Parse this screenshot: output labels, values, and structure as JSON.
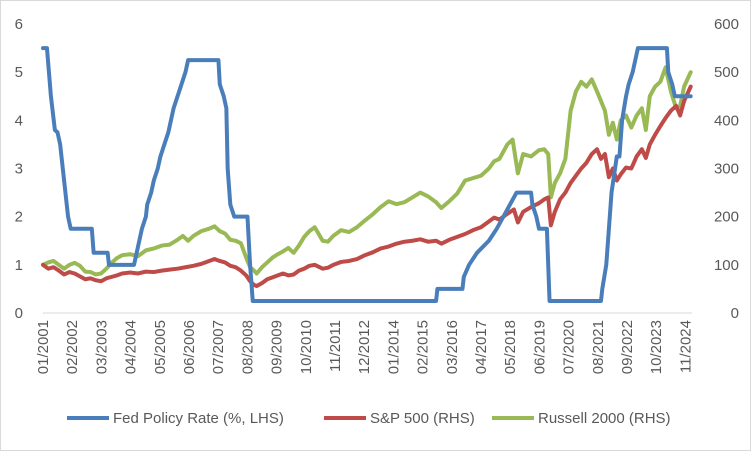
{
  "chart_data": {
    "type": "line",
    "title": "",
    "xlabel": "",
    "ylabel_left": "",
    "ylabel_right": "",
    "grid": false,
    "legend_position": "bottom",
    "y_left": {
      "min": 0,
      "max": 6,
      "ticks": [
        "0",
        "1",
        "2",
        "3",
        "4",
        "5",
        "6"
      ]
    },
    "y_right": {
      "min": 0,
      "max": 600,
      "ticks": [
        "0",
        "100",
        "200",
        "300",
        "400",
        "500",
        "600"
      ]
    },
    "x_range": [
      2001.0,
      2025.6
    ],
    "x_tick_labels": [
      "01/2001",
      "02/2002",
      "03/2003",
      "04/2004",
      "05/2005",
      "06/2006",
      "07/2007",
      "08/2008",
      "09/2009",
      "10/2010",
      "11/2011",
      "12/2012",
      "01/2014",
      "02/2015",
      "03/2016",
      "04/2017",
      "05/2018",
      "06/2019",
      "07/2020",
      "08/2021",
      "09/2022",
      "10/2023",
      "11/2024"
    ],
    "series": [
      {
        "name": "Fed Policy Rate (%, LHS)",
        "axis": "left",
        "color": "#4a7ebb",
        "points": [
          [
            2001.0,
            5.5
          ],
          [
            2001.15,
            5.5
          ],
          [
            2001.3,
            4.5
          ],
          [
            2001.45,
            3.8
          ],
          [
            2001.55,
            3.75
          ],
          [
            2001.65,
            3.5
          ],
          [
            2001.75,
            3.0
          ],
          [
            2001.85,
            2.5
          ],
          [
            2001.95,
            2.0
          ],
          [
            2002.05,
            1.75
          ],
          [
            2002.85,
            1.75
          ],
          [
            2002.92,
            1.25
          ],
          [
            2003.45,
            1.25
          ],
          [
            2003.5,
            1.0
          ],
          [
            2004.45,
            1.0
          ],
          [
            2004.55,
            1.25
          ],
          [
            2004.65,
            1.5
          ],
          [
            2004.75,
            1.75
          ],
          [
            2004.9,
            2.0
          ],
          [
            2004.95,
            2.25
          ],
          [
            2005.1,
            2.5
          ],
          [
            2005.2,
            2.75
          ],
          [
            2005.35,
            3.0
          ],
          [
            2005.45,
            3.25
          ],
          [
            2005.6,
            3.5
          ],
          [
            2005.75,
            3.75
          ],
          [
            2005.85,
            4.0
          ],
          [
            2005.95,
            4.25
          ],
          [
            2006.1,
            4.5
          ],
          [
            2006.25,
            4.75
          ],
          [
            2006.4,
            5.0
          ],
          [
            2006.5,
            5.25
          ],
          [
            2007.65,
            5.25
          ],
          [
            2007.7,
            4.75
          ],
          [
            2007.85,
            4.5
          ],
          [
            2007.95,
            4.25
          ],
          [
            2008.0,
            3.0
          ],
          [
            2008.1,
            2.25
          ],
          [
            2008.25,
            2.0
          ],
          [
            2008.75,
            2.0
          ],
          [
            2008.85,
            1.0
          ],
          [
            2008.95,
            0.25
          ],
          [
            2015.9,
            0.25
          ],
          [
            2015.95,
            0.5
          ],
          [
            2016.9,
            0.5
          ],
          [
            2016.95,
            0.75
          ],
          [
            2017.15,
            1.0
          ],
          [
            2017.45,
            1.25
          ],
          [
            2017.9,
            1.5
          ],
          [
            2018.2,
            1.75
          ],
          [
            2018.45,
            2.0
          ],
          [
            2018.7,
            2.25
          ],
          [
            2018.95,
            2.5
          ],
          [
            2019.5,
            2.5
          ],
          [
            2019.55,
            2.25
          ],
          [
            2019.7,
            2.0
          ],
          [
            2019.8,
            1.75
          ],
          [
            2020.1,
            1.75
          ],
          [
            2020.2,
            0.25
          ],
          [
            2022.15,
            0.25
          ],
          [
            2022.2,
            0.5
          ],
          [
            2022.35,
            1.0
          ],
          [
            2022.45,
            1.75
          ],
          [
            2022.55,
            2.5
          ],
          [
            2022.75,
            3.25
          ],
          [
            2022.85,
            3.25
          ],
          [
            2022.95,
            4.0
          ],
          [
            2023.1,
            4.5
          ],
          [
            2023.2,
            4.75
          ],
          [
            2023.35,
            5.0
          ],
          [
            2023.45,
            5.25
          ],
          [
            2023.55,
            5.5
          ],
          [
            2024.65,
            5.5
          ],
          [
            2024.7,
            5.0
          ],
          [
            2024.85,
            4.75
          ],
          [
            2024.95,
            4.5
          ],
          [
            2025.55,
            4.5
          ]
        ]
      },
      {
        "name": "S&P 500 (RHS)",
        "axis": "right",
        "color": "#be4b48",
        "points": [
          [
            2001.0,
            100
          ],
          [
            2001.2,
            92
          ],
          [
            2001.4,
            95
          ],
          [
            2001.6,
            88
          ],
          [
            2001.8,
            80
          ],
          [
            2002.0,
            85
          ],
          [
            2002.2,
            82
          ],
          [
            2002.4,
            76
          ],
          [
            2002.6,
            70
          ],
          [
            2002.8,
            72
          ],
          [
            2003.0,
            68
          ],
          [
            2003.2,
            66
          ],
          [
            2003.4,
            72
          ],
          [
            2003.6,
            75
          ],
          [
            2003.8,
            78
          ],
          [
            2004.0,
            82
          ],
          [
            2004.3,
            84
          ],
          [
            2004.6,
            82
          ],
          [
            2004.9,
            86
          ],
          [
            2005.2,
            85
          ],
          [
            2005.5,
            88
          ],
          [
            2005.8,
            90
          ],
          [
            2006.1,
            92
          ],
          [
            2006.4,
            95
          ],
          [
            2006.7,
            98
          ],
          [
            2007.0,
            102
          ],
          [
            2007.3,
            108
          ],
          [
            2007.5,
            112
          ],
          [
            2007.7,
            108
          ],
          [
            2007.9,
            105
          ],
          [
            2008.1,
            98
          ],
          [
            2008.3,
            95
          ],
          [
            2008.5,
            88
          ],
          [
            2008.7,
            78
          ],
          [
            2008.85,
            66
          ],
          [
            2009.0,
            58
          ],
          [
            2009.1,
            56
          ],
          [
            2009.3,
            62
          ],
          [
            2009.5,
            70
          ],
          [
            2009.7,
            74
          ],
          [
            2009.9,
            78
          ],
          [
            2010.1,
            82
          ],
          [
            2010.3,
            78
          ],
          [
            2010.5,
            80
          ],
          [
            2010.7,
            88
          ],
          [
            2010.9,
            92
          ],
          [
            2011.1,
            98
          ],
          [
            2011.3,
            100
          ],
          [
            2011.6,
            92
          ],
          [
            2011.8,
            94
          ],
          [
            2012.0,
            100
          ],
          [
            2012.3,
            106
          ],
          [
            2012.6,
            108
          ],
          [
            2012.9,
            112
          ],
          [
            2013.2,
            120
          ],
          [
            2013.5,
            126
          ],
          [
            2013.8,
            134
          ],
          [
            2014.1,
            138
          ],
          [
            2014.4,
            144
          ],
          [
            2014.7,
            148
          ],
          [
            2015.0,
            150
          ],
          [
            2015.3,
            153
          ],
          [
            2015.6,
            148
          ],
          [
            2015.9,
            150
          ],
          [
            2016.1,
            144
          ],
          [
            2016.4,
            152
          ],
          [
            2016.7,
            158
          ],
          [
            2017.0,
            164
          ],
          [
            2017.3,
            172
          ],
          [
            2017.6,
            178
          ],
          [
            2017.9,
            190
          ],
          [
            2018.1,
            198
          ],
          [
            2018.3,
            194
          ],
          [
            2018.6,
            206
          ],
          [
            2018.85,
            215
          ],
          [
            2019.0,
            188
          ],
          [
            2019.2,
            210
          ],
          [
            2019.5,
            220
          ],
          [
            2019.8,
            228
          ],
          [
            2020.0,
            236
          ],
          [
            2020.15,
            240
          ],
          [
            2020.25,
            182
          ],
          [
            2020.4,
            210
          ],
          [
            2020.6,
            236
          ],
          [
            2020.8,
            250
          ],
          [
            2021.0,
            270
          ],
          [
            2021.2,
            285
          ],
          [
            2021.4,
            300
          ],
          [
            2021.6,
            312
          ],
          [
            2021.8,
            330
          ],
          [
            2022.0,
            340
          ],
          [
            2022.15,
            320
          ],
          [
            2022.3,
            330
          ],
          [
            2022.45,
            282
          ],
          [
            2022.6,
            300
          ],
          [
            2022.75,
            275
          ],
          [
            2022.9,
            288
          ],
          [
            2023.1,
            302
          ],
          [
            2023.3,
            300
          ],
          [
            2023.5,
            325
          ],
          [
            2023.7,
            340
          ],
          [
            2023.85,
            322
          ],
          [
            2024.0,
            350
          ],
          [
            2024.2,
            370
          ],
          [
            2024.4,
            388
          ],
          [
            2024.6,
            405
          ],
          [
            2024.8,
            420
          ],
          [
            2025.0,
            430
          ],
          [
            2025.15,
            410
          ],
          [
            2025.3,
            440
          ],
          [
            2025.55,
            470
          ]
        ]
      },
      {
        "name": "Russell 2000 (RHS)",
        "axis": "right",
        "color": "#98b954",
        "points": [
          [
            2001.0,
            100
          ],
          [
            2001.2,
            105
          ],
          [
            2001.4,
            108
          ],
          [
            2001.6,
            100
          ],
          [
            2001.8,
            92
          ],
          [
            2002.0,
            100
          ],
          [
            2002.2,
            104
          ],
          [
            2002.4,
            98
          ],
          [
            2002.6,
            86
          ],
          [
            2002.8,
            85
          ],
          [
            2003.0,
            80
          ],
          [
            2003.2,
            82
          ],
          [
            2003.4,
            92
          ],
          [
            2003.6,
            104
          ],
          [
            2003.8,
            114
          ],
          [
            2004.0,
            120
          ],
          [
            2004.3,
            122
          ],
          [
            2004.6,
            118
          ],
          [
            2004.9,
            130
          ],
          [
            2005.2,
            134
          ],
          [
            2005.5,
            140
          ],
          [
            2005.8,
            142
          ],
          [
            2006.1,
            152
          ],
          [
            2006.3,
            160
          ],
          [
            2006.5,
            150
          ],
          [
            2006.7,
            160
          ],
          [
            2007.0,
            170
          ],
          [
            2007.3,
            175
          ],
          [
            2007.5,
            180
          ],
          [
            2007.7,
            170
          ],
          [
            2007.9,
            165
          ],
          [
            2008.1,
            152
          ],
          [
            2008.3,
            150
          ],
          [
            2008.5,
            145
          ],
          [
            2008.7,
            115
          ],
          [
            2008.85,
            95
          ],
          [
            2009.0,
            88
          ],
          [
            2009.1,
            82
          ],
          [
            2009.3,
            95
          ],
          [
            2009.5,
            105
          ],
          [
            2009.7,
            115
          ],
          [
            2009.9,
            122
          ],
          [
            2010.1,
            128
          ],
          [
            2010.3,
            135
          ],
          [
            2010.5,
            125
          ],
          [
            2010.7,
            140
          ],
          [
            2010.9,
            158
          ],
          [
            2011.1,
            170
          ],
          [
            2011.3,
            178
          ],
          [
            2011.6,
            150
          ],
          [
            2011.8,
            148
          ],
          [
            2012.0,
            160
          ],
          [
            2012.3,
            172
          ],
          [
            2012.6,
            168
          ],
          [
            2012.9,
            178
          ],
          [
            2013.2,
            192
          ],
          [
            2013.5,
            205
          ],
          [
            2013.8,
            220
          ],
          [
            2014.1,
            232
          ],
          [
            2014.4,
            226
          ],
          [
            2014.7,
            230
          ],
          [
            2015.0,
            240
          ],
          [
            2015.3,
            250
          ],
          [
            2015.6,
            242
          ],
          [
            2015.9,
            230
          ],
          [
            2016.1,
            218
          ],
          [
            2016.4,
            232
          ],
          [
            2016.7,
            248
          ],
          [
            2017.0,
            275
          ],
          [
            2017.3,
            280
          ],
          [
            2017.6,
            285
          ],
          [
            2017.9,
            300
          ],
          [
            2018.1,
            315
          ],
          [
            2018.3,
            320
          ],
          [
            2018.6,
            350
          ],
          [
            2018.8,
            360
          ],
          [
            2019.0,
            290
          ],
          [
            2019.2,
            330
          ],
          [
            2019.5,
            325
          ],
          [
            2019.8,
            338
          ],
          [
            2020.0,
            340
          ],
          [
            2020.15,
            330
          ],
          [
            2020.25,
            240
          ],
          [
            2020.4,
            270
          ],
          [
            2020.6,
            290
          ],
          [
            2020.8,
            320
          ],
          [
            2021.0,
            420
          ],
          [
            2021.2,
            460
          ],
          [
            2021.4,
            480
          ],
          [
            2021.6,
            470
          ],
          [
            2021.8,
            485
          ],
          [
            2022.0,
            460
          ],
          [
            2022.15,
            440
          ],
          [
            2022.3,
            420
          ],
          [
            2022.45,
            370
          ],
          [
            2022.6,
            395
          ],
          [
            2022.75,
            360
          ],
          [
            2022.9,
            400
          ],
          [
            2023.1,
            410
          ],
          [
            2023.3,
            385
          ],
          [
            2023.5,
            410
          ],
          [
            2023.7,
            425
          ],
          [
            2023.85,
            380
          ],
          [
            2024.0,
            450
          ],
          [
            2024.2,
            470
          ],
          [
            2024.4,
            480
          ],
          [
            2024.6,
            510
          ],
          [
            2024.8,
            460
          ],
          [
            2025.0,
            425
          ],
          [
            2025.15,
            430
          ],
          [
            2025.3,
            470
          ],
          [
            2025.55,
            500
          ]
        ]
      }
    ]
  }
}
